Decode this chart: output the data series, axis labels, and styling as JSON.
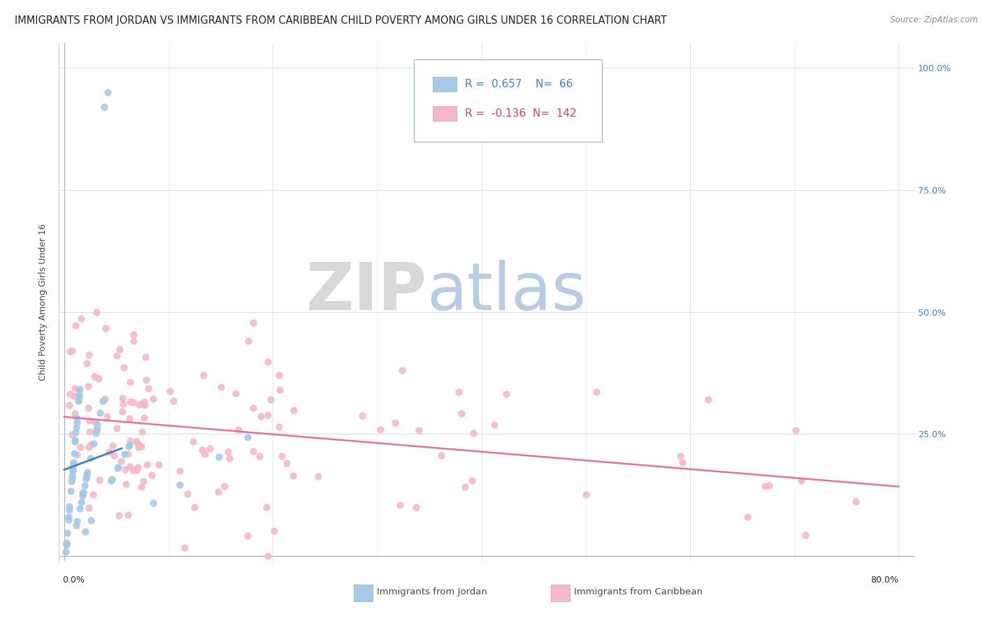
{
  "title": "IMMIGRANTS FROM JORDAN VS IMMIGRANTS FROM CARIBBEAN CHILD POVERTY AMONG GIRLS UNDER 16 CORRELATION CHART",
  "source": "Source: ZipAtlas.com",
  "ylabel": "Child Poverty Among Girls Under 16",
  "jordan_R": 0.657,
  "jordan_N": 66,
  "caribbean_R": -0.136,
  "caribbean_N": 142,
  "jordan_color": "#a8c8e8",
  "caribbean_color": "#f4b8c8",
  "jordan_line_color": "#4080c0",
  "caribbean_line_color": "#e87090",
  "watermark_zip_color": "#d8d8d8",
  "watermark_atlas_color": "#b8cce4",
  "background_color": "#ffffff",
  "title_fontsize": 10.5,
  "axis_label_fontsize": 9,
  "tick_fontsize": 9,
  "legend_fontsize": 11
}
